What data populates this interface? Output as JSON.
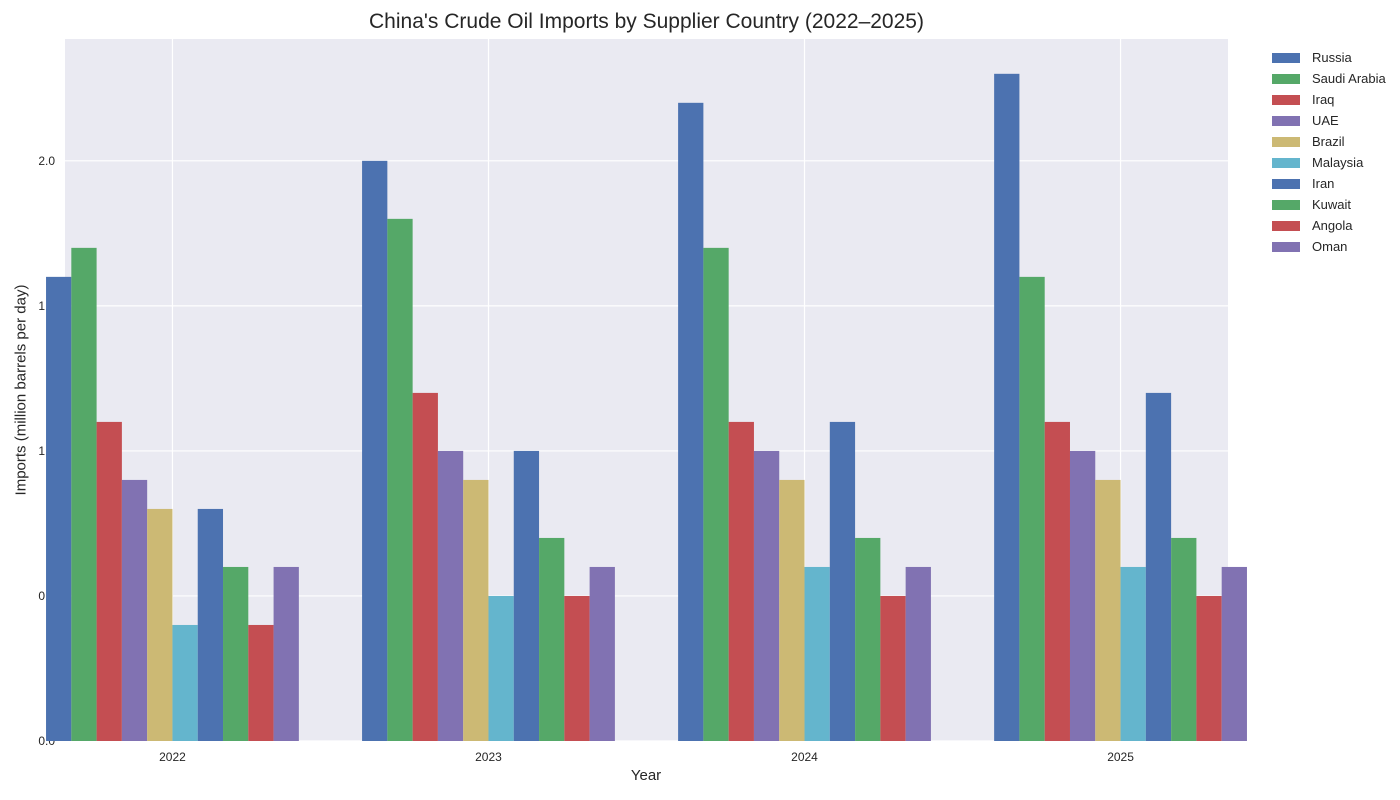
{
  "chart_data": {
    "type": "bar",
    "title": "China's Crude Oil Imports by Supplier Country (2022–2025)",
    "xlabel": "Year",
    "ylabel": "Imports (million barrels per day)",
    "categories": [
      "2022",
      "2023",
      "2024",
      "2025"
    ],
    "ylim": [
      0,
      2.42
    ],
    "yticks": [
      "0.0",
      "0.5",
      "1.0",
      "1.5",
      "2.0"
    ],
    "grid": true,
    "legend_position": "outside-right",
    "series": [
      {
        "name": "Russia",
        "color": "#4c72b0",
        "values": [
          1.6,
          2.0,
          2.2,
          2.3
        ]
      },
      {
        "name": "Saudi Arabia",
        "color": "#55a868",
        "values": [
          1.7,
          1.8,
          1.7,
          1.6
        ]
      },
      {
        "name": "Iraq",
        "color": "#c44e52",
        "values": [
          1.1,
          1.2,
          1.1,
          1.1
        ]
      },
      {
        "name": "UAE",
        "color": "#8172b2",
        "values": [
          0.9,
          1.0,
          1.0,
          1.0
        ]
      },
      {
        "name": "Brazil",
        "color": "#ccb974",
        "values": [
          0.8,
          0.9,
          0.9,
          0.9
        ]
      },
      {
        "name": "Malaysia",
        "color": "#64b5cd",
        "values": [
          0.4,
          0.5,
          0.6,
          0.6
        ]
      },
      {
        "name": "Iran",
        "color": "#4c72b0",
        "values": [
          0.8,
          1.0,
          1.1,
          1.2
        ]
      },
      {
        "name": "Kuwait",
        "color": "#55a868",
        "values": [
          0.6,
          0.7,
          0.7,
          0.7
        ]
      },
      {
        "name": "Angola",
        "color": "#c44e52",
        "values": [
          0.4,
          0.5,
          0.5,
          0.5
        ]
      },
      {
        "name": "Oman",
        "color": "#8172b2",
        "values": [
          0.6,
          0.6,
          0.6,
          0.6
        ]
      }
    ]
  }
}
